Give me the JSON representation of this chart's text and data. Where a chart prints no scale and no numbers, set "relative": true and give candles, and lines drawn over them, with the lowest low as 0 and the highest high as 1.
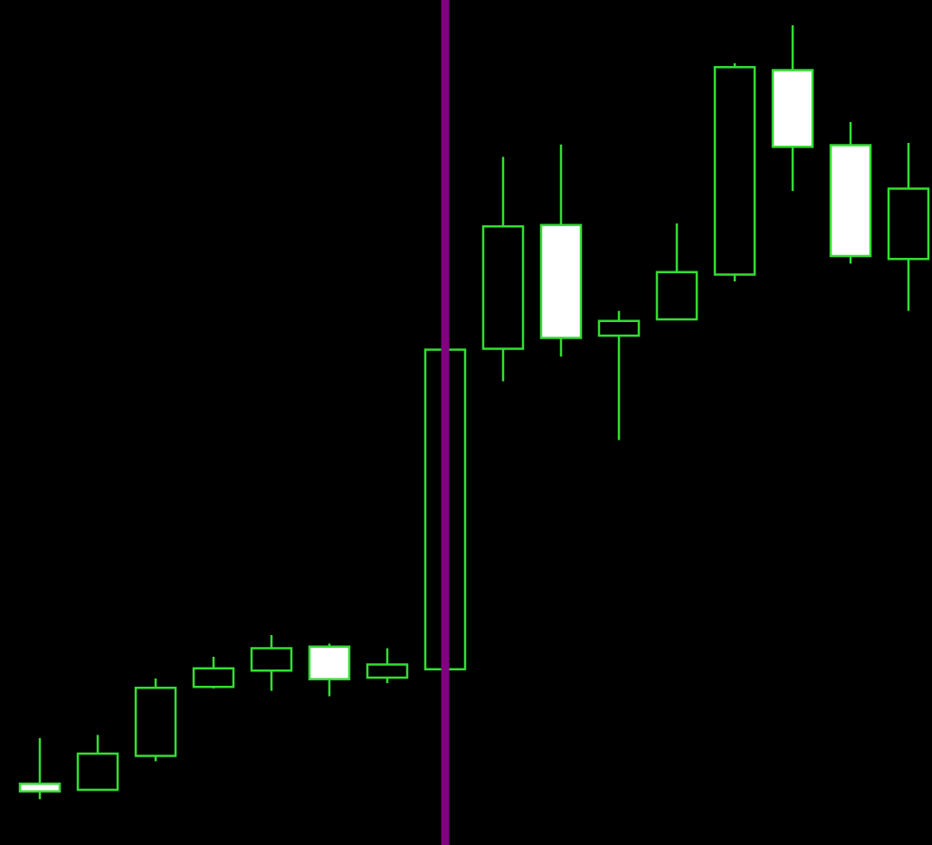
{
  "chart_data": {
    "type": "candlestick",
    "relative": true,
    "color": "#33dd33",
    "categories": [
      null,
      null,
      null,
      null,
      null,
      null,
      null,
      null,
      null,
      null,
      null,
      null,
      null,
      null,
      null,
      null
    ],
    "ohlc": [
      [
        0.02,
        0.079,
        0,
        0.01
      ],
      [
        0.012,
        0.083,
        0.012,
        0.059
      ],
      [
        0.056,
        0.156,
        0.049,
        0.144
      ],
      [
        0.145,
        0.184,
        0.143,
        0.169
      ],
      [
        0.166,
        0.212,
        0.14,
        0.195
      ],
      [
        0.197,
        0.201,
        0.133,
        0.155
      ],
      [
        0.157,
        0.195,
        0.15,
        0.174
      ],
      [
        0.168,
        0.581,
        0.168,
        0.581
      ],
      [
        0.582,
        0.83,
        0.54,
        0.74
      ],
      [
        0.742,
        0.846,
        0.572,
        0.596
      ],
      [
        0.599,
        0.631,
        0.464,
        0.618
      ],
      [
        0.62,
        0.744,
        0.62,
        0.681
      ],
      [
        0.678,
        0.951,
        0.669,
        0.946
      ],
      [
        0.942,
        1,
        0.786,
        0.843
      ],
      [
        0.845,
        0.875,
        0.692,
        0.702
      ],
      [
        0.698,
        0.848,
        0.631,
        0.789
      ]
    ],
    "colors": [
      "#ffffff",
      "#000000",
      "#000000",
      "#000000",
      "#000000",
      "#ffffff",
      "#000000",
      "#000000",
      "#000000",
      "#ffffff",
      "#000000",
      "#000000",
      "#000000",
      "#ffffff",
      "#ffffff",
      "#000000"
    ]
  }
}
